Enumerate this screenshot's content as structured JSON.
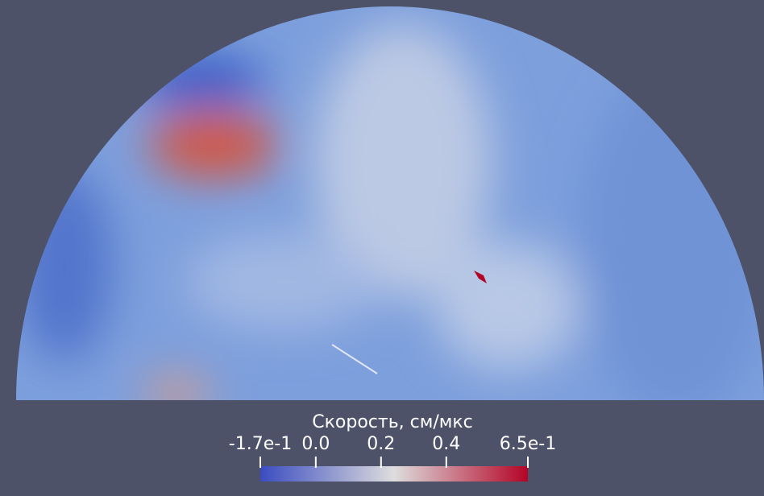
{
  "chart_data": {
    "type": "colorbar",
    "title": "Скорость, см/мкс",
    "xlim": [
      -0.17,
      0.65
    ],
    "xticks": [
      {
        "value": -0.17,
        "label": "-1.7e-1"
      },
      {
        "value": 0.0,
        "label": "0.0"
      },
      {
        "value": 0.2,
        "label": "0.2"
      },
      {
        "value": 0.4,
        "label": "0.4"
      },
      {
        "value": 0.65,
        "label": "6.5e-1"
      }
    ],
    "colormap": [
      "#3b4cc0",
      "#dddddd",
      "#b40426"
    ]
  }
}
